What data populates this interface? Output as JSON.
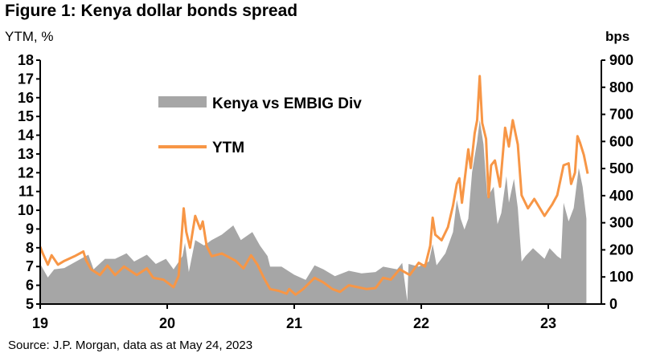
{
  "chart_data": {
    "type": "area+line",
    "title": "Figure 1: Kenya dollar bonds spread",
    "ylabel_left": "YTM, %",
    "ylabel_right": "bps",
    "source": "Source: J.P. Morgan, data as at May 24, 2023",
    "xlim": [
      2019.0,
      2023.45
    ],
    "ylim_left": [
      5,
      18
    ],
    "ylim_right": [
      0,
      900
    ],
    "x_ticks": [
      {
        "value": 2019,
        "label": "19"
      },
      {
        "value": 2020,
        "label": "20"
      },
      {
        "value": 2021,
        "label": "21"
      },
      {
        "value": 2022,
        "label": "22"
      },
      {
        "value": 2023,
        "label": "23"
      }
    ],
    "y_ticks_left": [
      "5",
      "6",
      "7",
      "8",
      "9",
      "10",
      "11",
      "12",
      "13",
      "14",
      "15",
      "16",
      "17",
      "18"
    ],
    "y_ticks_right": [
      "0",
      "100",
      "200",
      "300",
      "400",
      "500",
      "600",
      "700",
      "800",
      "900"
    ],
    "grid": false,
    "legend_placement": "top-left",
    "colors": {
      "spread": "#a6a6a6",
      "ytm": "#f79646"
    },
    "series": [
      {
        "name": "Kenya vs EMBIG Div",
        "type": "area",
        "axis": "right",
        "x": [
          2019.0,
          2019.06,
          2019.11,
          2019.19,
          2019.32,
          2019.38,
          2019.42,
          2019.51,
          2019.59,
          2019.68,
          2019.74,
          2019.84,
          2019.91,
          2019.99,
          2020.05,
          2020.12,
          2020.14,
          2020.17,
          2020.22,
          2020.29,
          2020.35,
          2020.43,
          2020.52,
          2020.58,
          2020.67,
          2020.73,
          2020.79,
          2020.81,
          2020.9,
          2021.0,
          2021.09,
          2021.16,
          2021.23,
          2021.32,
          2021.43,
          2021.53,
          2021.64,
          2021.7,
          2021.81,
          2021.85,
          2021.89,
          2021.9,
          2021.98,
          2022.06,
          2022.09,
          2022.12,
          2022.19,
          2022.25,
          2022.28,
          2022.31,
          2022.34,
          2022.37,
          2022.4,
          2022.44,
          2022.46,
          2022.49,
          2022.52,
          2022.57,
          2022.6,
          2022.63,
          2022.67,
          2022.69,
          2022.73,
          2022.76,
          2022.79,
          2022.82,
          2022.88,
          2022.97,
          2023.01,
          2023.07,
          2023.1,
          2023.12,
          2023.16,
          2023.2,
          2023.24,
          2023.27,
          2023.3
        ],
        "values": [
          148,
          98,
          128,
          133,
          167,
          182,
          128,
          167,
          167,
          187,
          157,
          182,
          148,
          167,
          128,
          177,
          226,
          118,
          236,
          216,
          236,
          256,
          290,
          236,
          266,
          216,
          177,
          138,
          138,
          108,
          89,
          143,
          128,
          103,
          123,
          113,
          118,
          138,
          128,
          152,
          10,
          148,
          138,
          157,
          221,
          143,
          187,
          266,
          384,
          315,
          275,
          315,
          487,
          600,
          679,
          590,
          394,
          433,
          295,
          335,
          472,
          374,
          462,
          354,
          157,
          177,
          206,
          167,
          206,
          177,
          167,
          374,
          305,
          354,
          502,
          433,
          315
        ]
      },
      {
        "name": "YTM",
        "type": "line",
        "axis": "left",
        "x": [
          2019.0,
          2019.02,
          2019.06,
          2019.09,
          2019.14,
          2019.19,
          2019.27,
          2019.34,
          2019.36,
          2019.4,
          2019.47,
          2019.53,
          2019.59,
          2019.66,
          2019.76,
          2019.84,
          2019.89,
          2019.97,
          2020.0,
          2020.05,
          2020.09,
          2020.13,
          2020.15,
          2020.18,
          2020.22,
          2020.26,
          2020.28,
          2020.31,
          2020.35,
          2020.43,
          2020.54,
          2020.6,
          2020.66,
          2020.71,
          2020.76,
          2020.81,
          2020.88,
          2020.94,
          2020.96,
          2021.01,
          2021.07,
          2021.16,
          2021.23,
          2021.3,
          2021.36,
          2021.43,
          2021.57,
          2021.64,
          2021.7,
          2021.76,
          2021.83,
          2021.91,
          2021.98,
          2022.03,
          2022.07,
          2022.09,
          2022.11,
          2022.16,
          2022.21,
          2022.25,
          2022.28,
          2022.3,
          2022.32,
          2022.37,
          2022.39,
          2022.42,
          2022.44,
          2022.46,
          2022.48,
          2022.51,
          2022.53,
          2022.55,
          2022.58,
          2022.62,
          2022.66,
          2022.69,
          2022.72,
          2022.76,
          2022.79,
          2022.84,
          2022.89,
          2022.97,
          2023.03,
          2023.07,
          2023.12,
          2023.16,
          2023.18,
          2023.21,
          2023.23,
          2023.25,
          2023.28,
          2023.31
        ],
        "values": [
          8.05,
          7.7,
          7.1,
          7.6,
          7.1,
          7.3,
          7.55,
          7.8,
          7.35,
          6.85,
          6.55,
          7.05,
          6.55,
          7.0,
          6.55,
          6.9,
          6.4,
          6.3,
          6.15,
          5.9,
          6.5,
          10.1,
          8.85,
          8.0,
          9.7,
          9.0,
          9.4,
          8.1,
          7.55,
          7.7,
          7.3,
          6.9,
          7.6,
          7.1,
          6.4,
          5.8,
          5.7,
          5.55,
          5.8,
          5.5,
          5.8,
          6.4,
          6.15,
          5.8,
          5.65,
          6.0,
          5.8,
          5.85,
          6.4,
          6.3,
          6.85,
          6.55,
          7.2,
          7.0,
          8.1,
          9.6,
          8.7,
          8.4,
          9.1,
          10.25,
          11.4,
          11.7,
          10.4,
          13.25,
          12.25,
          14.1,
          14.8,
          17.15,
          14.65,
          13.8,
          10.7,
          12.4,
          12.65,
          11.25,
          14.4,
          13.4,
          14.8,
          13.5,
          10.8,
          10.1,
          10.6,
          9.7,
          10.3,
          10.8,
          12.4,
          12.5,
          11.4,
          12.0,
          13.95,
          13.6,
          12.95,
          11.95
        ]
      }
    ]
  }
}
